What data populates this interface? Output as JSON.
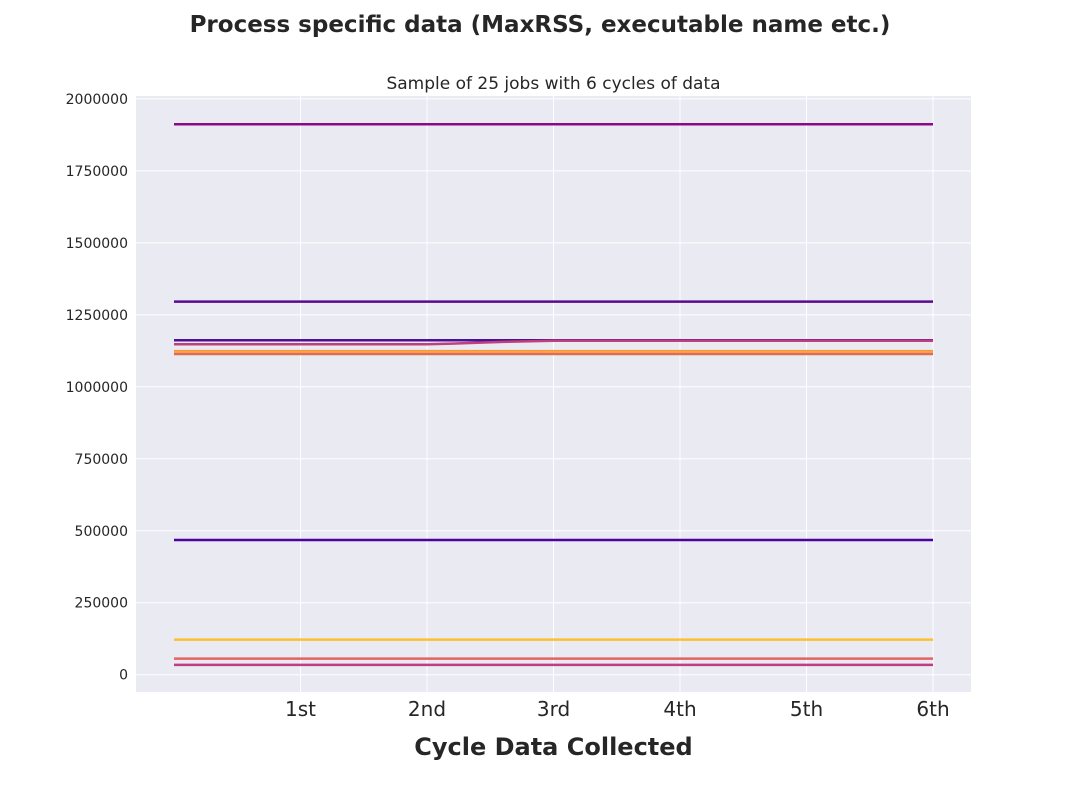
{
  "suptitle": "Process specific data (MaxRSS, executable name etc.)",
  "chart_data": {
    "type": "line",
    "title": "Sample of 25 jobs with 6 cycles of data",
    "xlabel": "Cycle Data Collected",
    "ylabel": "",
    "categories": [
      "1st",
      "2nd",
      "3rd",
      "4th",
      "5th",
      "6th"
    ],
    "xlim": [
      -0.3,
      6.3
    ],
    "ylim": [
      -60000,
      2010000
    ],
    "yticks": [
      0,
      250000,
      500000,
      750000,
      1000000,
      1250000,
      1500000,
      1750000,
      2000000
    ],
    "yticklabels": [
      "0",
      "250000",
      "500000",
      "750000",
      "1000000",
      "1250000",
      "1500000",
      "1750000",
      "2000000"
    ],
    "grid": true,
    "legend": "none",
    "background": "#eaeaf2",
    "series": [
      {
        "color": "#8b0a8b",
        "x": [
          0,
          1,
          2,
          3,
          4,
          5,
          6
        ],
        "values": [
          1912000,
          1912000,
          1912000,
          1912000,
          1912000,
          1912000,
          1912000
        ]
      },
      {
        "color": "#5b0a8f",
        "x": [
          0,
          1,
          2,
          3,
          4,
          5,
          6
        ],
        "values": [
          1296000,
          1296000,
          1296000,
          1296000,
          1296000,
          1296000,
          1296000
        ]
      },
      {
        "color": "#4b1196",
        "x": [
          0,
          1,
          2,
          3,
          4,
          5,
          6
        ],
        "values": [
          1162000,
          1162000,
          1162000,
          1162000,
          1162000,
          1162000,
          1162000
        ]
      },
      {
        "color": "#c0407d",
        "x": [
          0,
          1,
          2,
          2.2,
          2.6,
          3,
          4,
          5,
          6
        ],
        "values": [
          1148000,
          1148000,
          1148000,
          1150000,
          1156000,
          1160000,
          1160000,
          1160000,
          1160000
        ]
      },
      {
        "color": "#f89540",
        "x": [
          0,
          1,
          2,
          3,
          4,
          5,
          6
        ],
        "values": [
          1124000,
          1124000,
          1124000,
          1124000,
          1124000,
          1124000,
          1124000
        ]
      },
      {
        "color": "#fbb63b",
        "x": [
          0,
          1,
          2,
          3,
          4,
          5,
          6
        ],
        "values": [
          1118000,
          1118000,
          1118000,
          1118000,
          1118000,
          1118000,
          1118000
        ]
      },
      {
        "color": "#e06a5a",
        "x": [
          0,
          1,
          2,
          3,
          4,
          5,
          6
        ],
        "values": [
          1114000,
          1114000,
          1114000,
          1114000,
          1114000,
          1114000,
          1114000
        ]
      },
      {
        "color": "#4c02a1",
        "x": [
          0,
          1,
          2,
          3,
          4,
          5,
          6
        ],
        "values": [
          468000,
          468000,
          468000,
          468000,
          468000,
          468000,
          468000
        ]
      },
      {
        "color": "#fdc02f",
        "x": [
          0,
          1,
          2,
          3,
          4,
          5,
          6
        ],
        "values": [
          122000,
          122000,
          122000,
          122000,
          122000,
          122000,
          122000
        ]
      },
      {
        "color": "#e16462",
        "x": [
          0,
          1,
          2,
          3,
          4,
          5,
          6
        ],
        "values": [
          56000,
          56000,
          56000,
          56000,
          56000,
          56000,
          56000
        ]
      },
      {
        "color": "#c23c81",
        "x": [
          0,
          1,
          2,
          3,
          4,
          5,
          6
        ],
        "values": [
          34000,
          34000,
          34000,
          34000,
          34000,
          34000,
          34000
        ]
      }
    ]
  }
}
